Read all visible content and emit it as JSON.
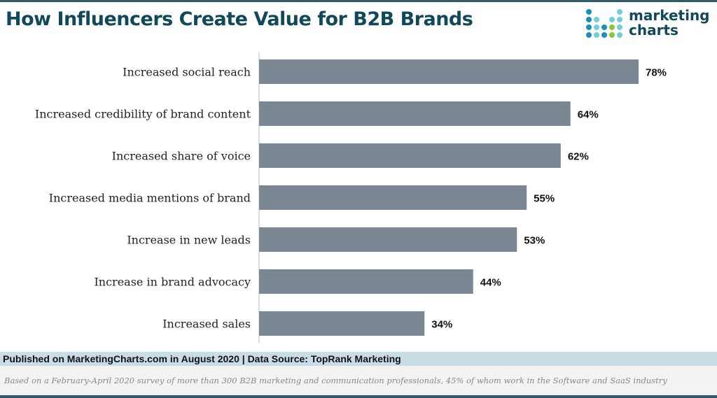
{
  "header": {
    "title": "How Influencers Create Value for B2B Brands",
    "logo_text": [
      "marketing",
      "charts"
    ]
  },
  "chart_data": {
    "type": "bar",
    "orientation": "horizontal",
    "categories": [
      "Increased social reach",
      "Increased credibility of brand content",
      "Increased share of voice",
      "Increased media mentions of brand",
      "Increase in new leads",
      "Increase in brand advocacy",
      "Increased sales"
    ],
    "values": [
      78,
      64,
      62,
      55,
      53,
      44,
      34
    ],
    "data_labels": [
      "78%",
      "64%",
      "62%",
      "55%",
      "53%",
      "44%",
      "34%"
    ],
    "xlim": [
      0,
      100
    ],
    "grid": false,
    "bar_color": "#7b8893"
  },
  "footer": {
    "published": "Published on MarketingCharts.com in August 2020 | Data Source: TopRank Marketing",
    "note": "Based on a February-April 2020 survey of more than 300 B2B marketing and communication professionals, 45% of whom work in the Software and SaaS industry"
  }
}
